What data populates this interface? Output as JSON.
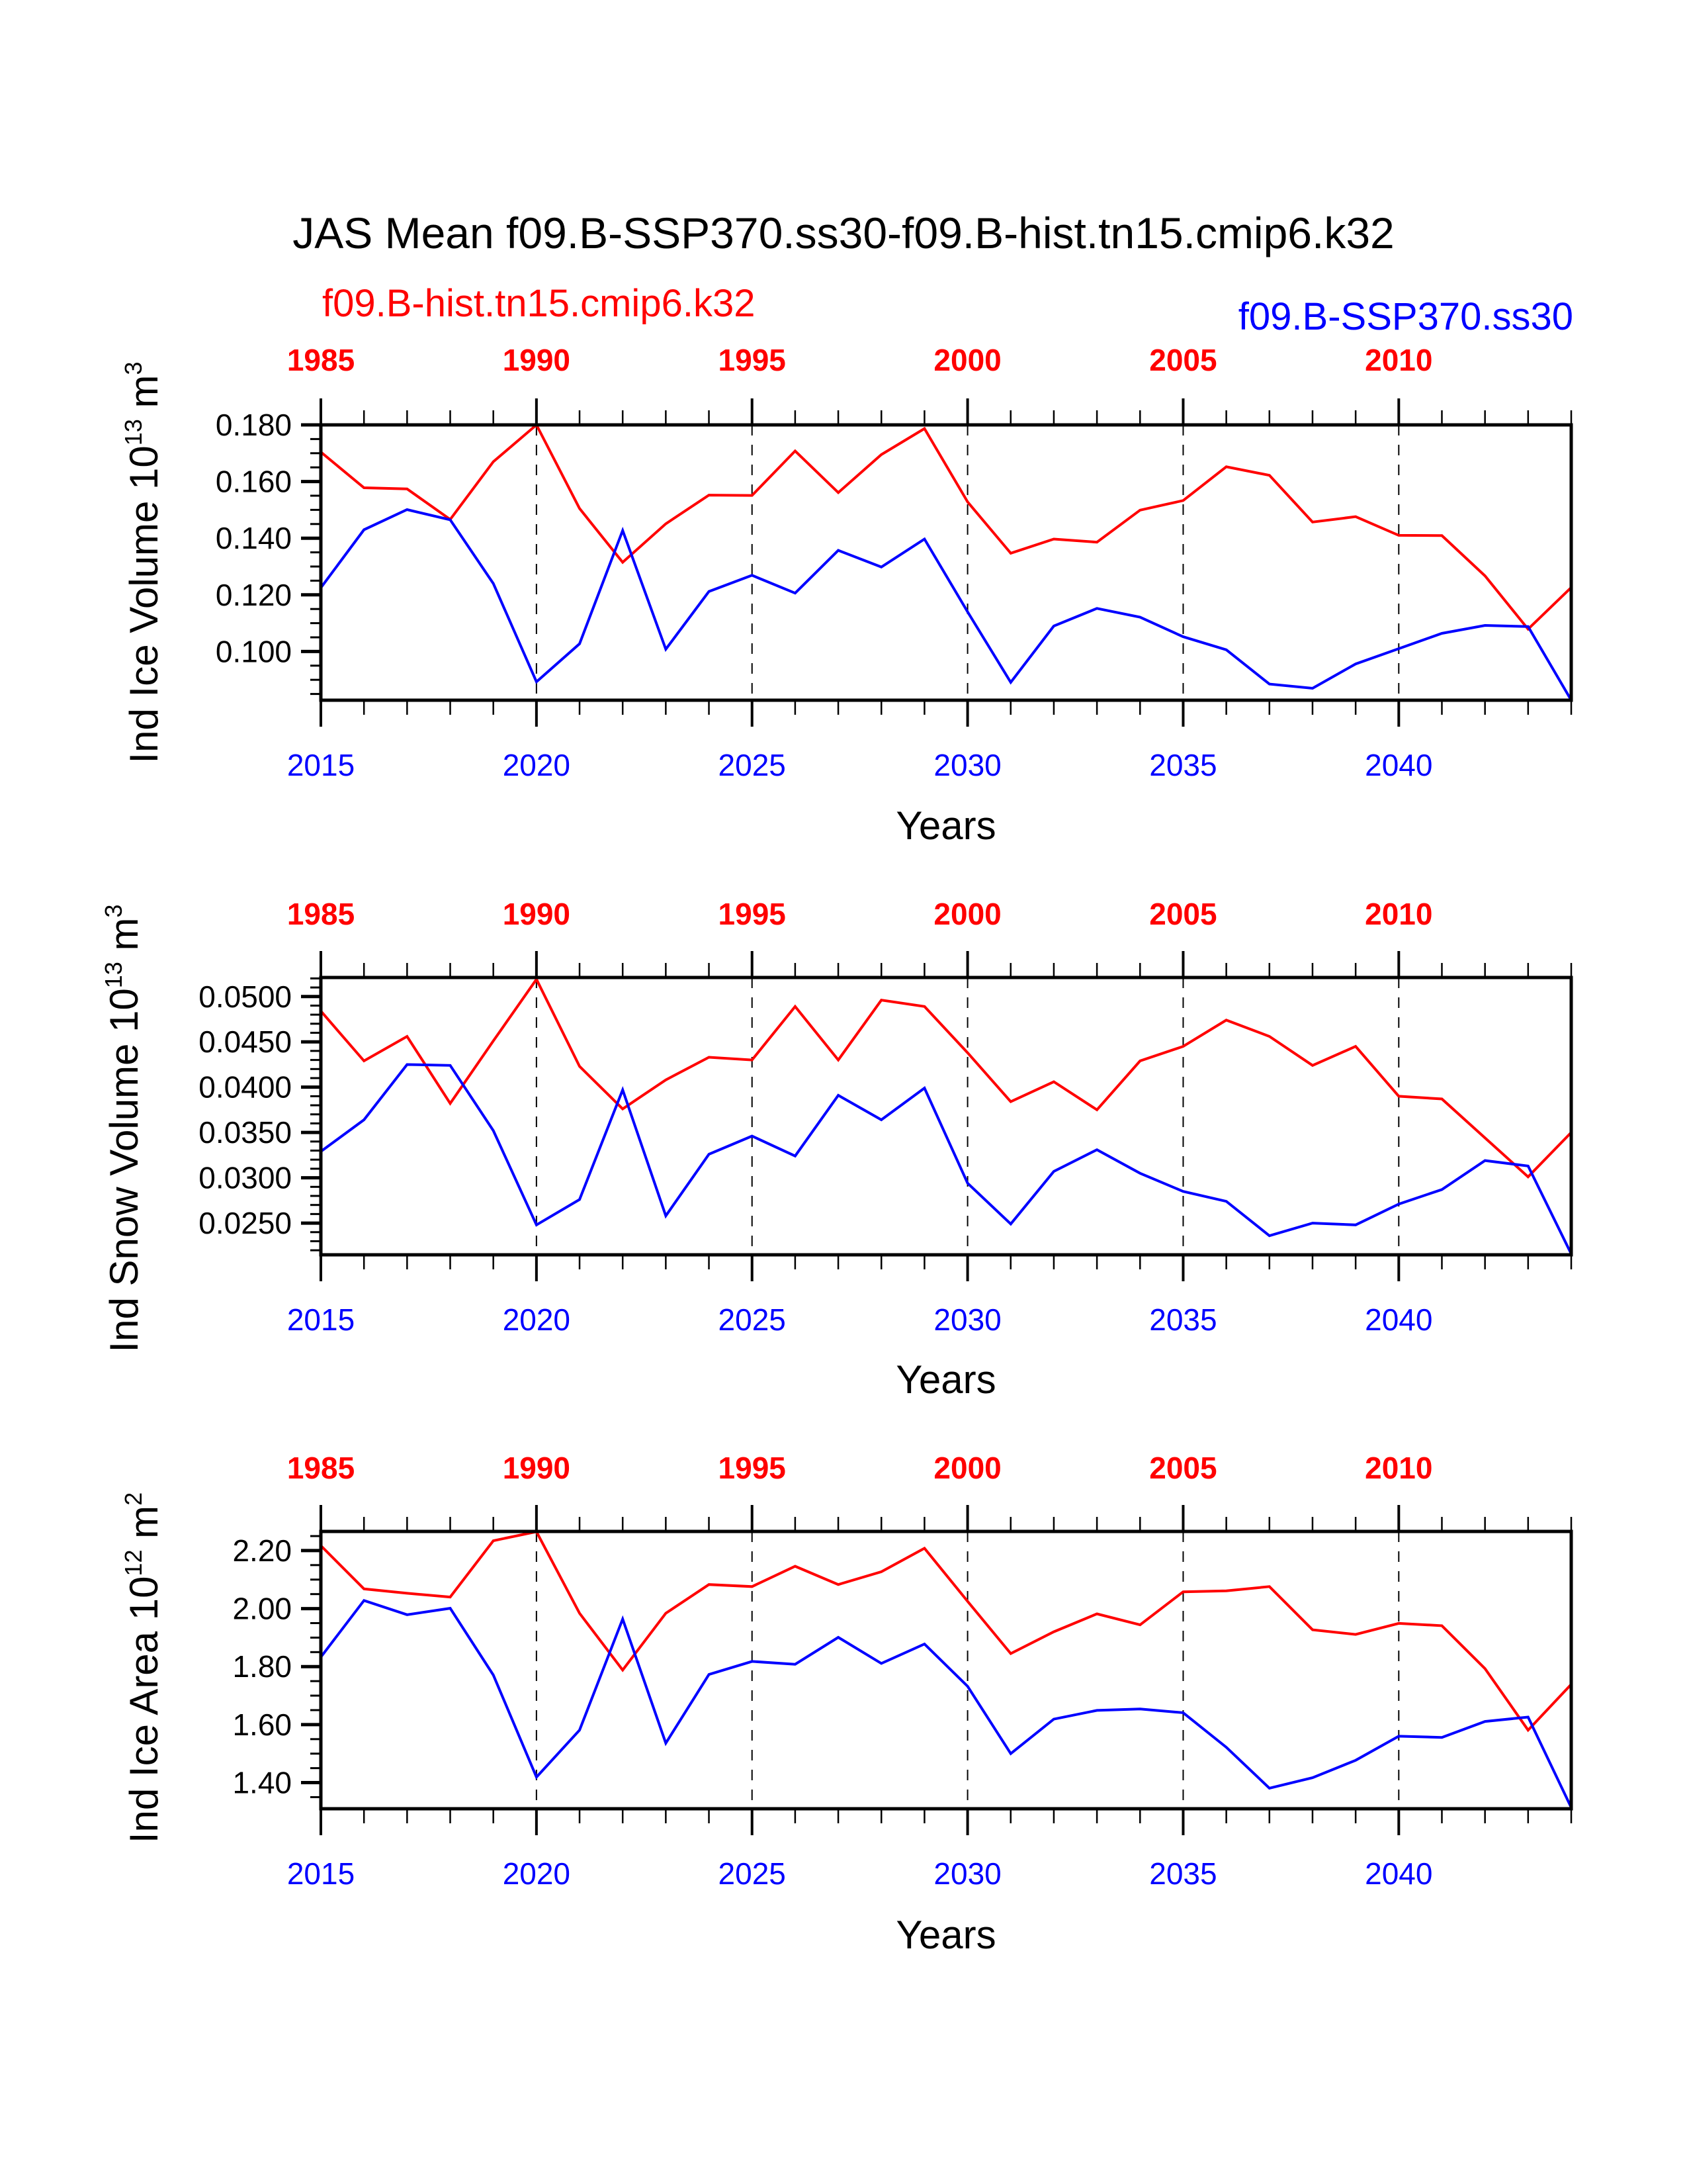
{
  "figure": {
    "title": "JAS Mean f09.B-SSP370.ss30-f09.B-hist.tn15.cmip6.k32",
    "left_subtitle": "f09.B-hist.tn15.cmip6.k32",
    "right_subtitle": "f09.B-SSP370.ss30",
    "colors": {
      "hist": "#ff0000",
      "ssp": "#0000ff",
      "axis": "#000000"
    }
  },
  "chart_data": [
    {
      "type": "line",
      "title": "",
      "ylabel": {
        "main": "Ind Ice Volume 10",
        "exp": "13",
        "unit": " m",
        "unit_exp": "3"
      },
      "xlabel": "Years",
      "grid": "dashed vertical lines every 5 years",
      "x_bottom": {
        "label_color": "blue",
        "ticks": [
          "2015",
          "2020",
          "2025",
          "2030",
          "2035",
          "2040"
        ],
        "range": [
          2015,
          2044
        ]
      },
      "x_top": {
        "label_color": "red",
        "ticks": [
          "1985",
          "1990",
          "1995",
          "2000",
          "2005",
          "2010"
        ],
        "range": [
          1985,
          2014
        ]
      },
      "ylim": [
        0.0828,
        0.18
      ],
      "yticks": [
        "0.100",
        "0.120",
        "0.140",
        "0.160",
        "0.180"
      ],
      "ytick_values": [
        0.1,
        0.12,
        0.14,
        0.16,
        0.18
      ],
      "yminor_step": 0.005,
      "x": [
        2015,
        2016,
        2017,
        2018,
        2019,
        2020,
        2021,
        2022,
        2023,
        2024,
        2025,
        2026,
        2027,
        2028,
        2029,
        2030,
        2031,
        2032,
        2033,
        2034,
        2035,
        2036,
        2037,
        2038,
        2039,
        2040,
        2041,
        2042,
        2043,
        2044
      ],
      "series": [
        {
          "name": "f09.B-hist.tn15.cmip6.k32",
          "color": "#ff0000",
          "values": [
            0.1704,
            0.1578,
            0.1574,
            0.1466,
            0.167,
            0.18,
            0.1505,
            0.1315,
            0.1451,
            0.1552,
            0.1551,
            0.1708,
            0.1561,
            0.1695,
            0.1787,
            0.1528,
            0.1347,
            0.1397,
            0.1386,
            0.1499,
            0.1533,
            0.1652,
            0.1622,
            0.1457,
            0.1476,
            0.141,
            0.1409,
            0.1267,
            0.1079,
            0.1226
          ]
        },
        {
          "name": "f09.B-SSP370.ss30",
          "color": "#0000ff",
          "values": [
            0.1225,
            0.143,
            0.1501,
            0.1465,
            0.124,
            0.0893,
            0.1027,
            0.1427,
            0.1008,
            0.1212,
            0.1269,
            0.1206,
            0.1357,
            0.1298,
            0.1397,
            0.114,
            0.0891,
            0.109,
            0.1152,
            0.1121,
            0.1052,
            0.1006,
            0.0885,
            0.087,
            0.0956,
            0.101,
            0.1064,
            0.1092,
            0.1088,
            0.0828
          ]
        }
      ]
    },
    {
      "type": "line",
      "title": "",
      "ylabel": {
        "main": "Ind Snow Volume 10",
        "exp": "13",
        "unit": " m",
        "unit_exp": "3"
      },
      "xlabel": "Years",
      "grid": "dashed vertical lines every 5 years",
      "x_bottom": {
        "label_color": "blue",
        "ticks": [
          "2015",
          "2020",
          "2025",
          "2030",
          "2035",
          "2040"
        ],
        "range": [
          2015,
          2044
        ]
      },
      "x_top": {
        "label_color": "red",
        "ticks": [
          "1985",
          "1990",
          "1995",
          "2000",
          "2005",
          "2010"
        ],
        "range": [
          1985,
          2014
        ]
      },
      "ylim": [
        0.0215,
        0.0521
      ],
      "yticks": [
        "0.0250",
        "0.0300",
        "0.0350",
        "0.0400",
        "0.0450",
        "0.0500"
      ],
      "ytick_values": [
        0.025,
        0.03,
        0.035,
        0.04,
        0.045,
        0.05
      ],
      "yminor_step": 0.001,
      "x": [
        2015,
        2016,
        2017,
        2018,
        2019,
        2020,
        2021,
        2022,
        2023,
        2024,
        2025,
        2026,
        2027,
        2028,
        2029,
        2030,
        2031,
        2032,
        2033,
        2034,
        2035,
        2036,
        2037,
        2038,
        2039,
        2040,
        2041,
        2042,
        2043,
        2044
      ],
      "series": [
        {
          "name": "f09.B-hist.tn15.cmip6.k32",
          "color": "#ff0000",
          "values": [
            0.0484,
            0.0429,
            0.0456,
            0.0382,
            0.0451,
            0.0519,
            0.0423,
            0.0376,
            0.0408,
            0.0433,
            0.043,
            0.0489,
            0.043,
            0.0496,
            0.0489,
            0.0438,
            0.0384,
            0.0406,
            0.0375,
            0.0429,
            0.0445,
            0.0474,
            0.0456,
            0.0424,
            0.0445,
            0.039,
            0.0387,
            0.0344,
            0.0301,
            0.035
          ]
        },
        {
          "name": "f09.B-SSP370.ss30",
          "color": "#0000ff",
          "values": [
            0.0329,
            0.0364,
            0.0425,
            0.0424,
            0.0352,
            0.0248,
            0.0276,
            0.0397,
            0.0258,
            0.0326,
            0.0346,
            0.0324,
            0.0391,
            0.0364,
            0.0399,
            0.0294,
            0.0249,
            0.0307,
            0.0331,
            0.0305,
            0.0285,
            0.0274,
            0.0236,
            0.025,
            0.0248,
            0.0271,
            0.0287,
            0.0319,
            0.0313,
            0.0216
          ]
        }
      ]
    },
    {
      "type": "line",
      "title": "",
      "ylabel": {
        "main": "Ind Ice Area 10",
        "exp": "12",
        "unit": " m",
        "unit_exp": "2"
      },
      "xlabel": "Years",
      "grid": "dashed vertical lines every 5 years",
      "x_bottom": {
        "label_color": "blue",
        "ticks": [
          "2015",
          "2020",
          "2025",
          "2030",
          "2035",
          "2040"
        ],
        "range": [
          2015,
          2044
        ]
      },
      "x_top": {
        "label_color": "red",
        "ticks": [
          "1985",
          "1990",
          "1995",
          "2000",
          "2005",
          "2010"
        ],
        "range": [
          1985,
          2014
        ]
      },
      "ylim": [
        1.31,
        2.266
      ],
      "yticks": [
        "1.40",
        "1.60",
        "1.80",
        "2.00",
        "2.20"
      ],
      "ytick_values": [
        1.4,
        1.6,
        1.8,
        2.0,
        2.2
      ],
      "yminor_step": 0.05,
      "x": [
        2015,
        2016,
        2017,
        2018,
        2019,
        2020,
        2021,
        2022,
        2023,
        2024,
        2025,
        2026,
        2027,
        2028,
        2029,
        2030,
        2031,
        2032,
        2033,
        2034,
        2035,
        2036,
        2037,
        2038,
        2039,
        2040,
        2041,
        2042,
        2043,
        2044
      ],
      "series": [
        {
          "name": "f09.B-hist.tn15.cmip6.k32",
          "color": "#ff0000",
          "values": [
            2.217,
            2.068,
            2.053,
            2.04,
            2.234,
            2.265,
            1.984,
            1.788,
            1.984,
            2.083,
            2.076,
            2.146,
            2.083,
            2.127,
            2.208,
            2.025,
            1.845,
            1.92,
            1.982,
            1.944,
            2.058,
            2.061,
            2.076,
            1.927,
            1.911,
            1.949,
            1.941,
            1.793,
            1.581,
            1.739
          ]
        },
        {
          "name": "f09.B-SSP370.ss30",
          "color": "#0000ff",
          "values": [
            1.833,
            2.028,
            1.979,
            2.001,
            1.771,
            1.419,
            1.581,
            1.964,
            1.536,
            1.773,
            1.818,
            1.808,
            1.901,
            1.811,
            1.878,
            1.732,
            1.5,
            1.619,
            1.649,
            1.654,
            1.641,
            1.522,
            1.381,
            1.417,
            1.477,
            1.56,
            1.556,
            1.611,
            1.626,
            1.314
          ]
        }
      ]
    }
  ]
}
